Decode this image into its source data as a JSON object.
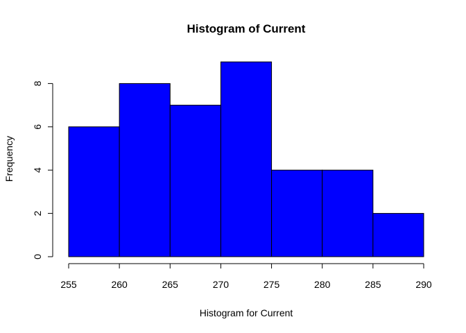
{
  "chart_data": {
    "type": "bar",
    "title": "Histogram of Current",
    "xlabel": "Histogram for Current",
    "ylabel": "Frequency",
    "bin_edges": [
      255,
      260,
      265,
      270,
      275,
      280,
      285,
      290
    ],
    "values": [
      6,
      8,
      7,
      9,
      4,
      4,
      2
    ],
    "xlim": [
      255,
      290
    ],
    "ylim": [
      0,
      9
    ],
    "x_ticks": [
      "255",
      "260",
      "265",
      "270",
      "275",
      "280",
      "285",
      "290"
    ],
    "y_ticks": [
      "0",
      "2",
      "4",
      "6",
      "8"
    ],
    "bar_color": "#0000FF",
    "border_color": "#000000",
    "grid": false
  }
}
